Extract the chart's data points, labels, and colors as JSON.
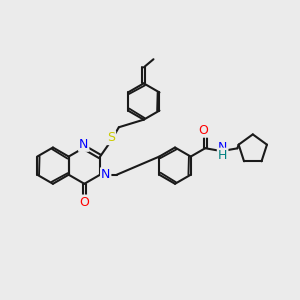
{
  "bg_color": "#ebebeb",
  "bond_color": "#1a1a1a",
  "N_color": "#0000ff",
  "O_color": "#ff0000",
  "S_color": "#cccc00",
  "H_color": "#008080",
  "lw": 1.5,
  "dbo": 0.06,
  "u": 0.58,
  "xlim": [
    0.0,
    9.5
  ],
  "ylim": [
    0.8,
    9.2
  ],
  "figsize": [
    3.0,
    3.0
  ],
  "dpi": 100
}
